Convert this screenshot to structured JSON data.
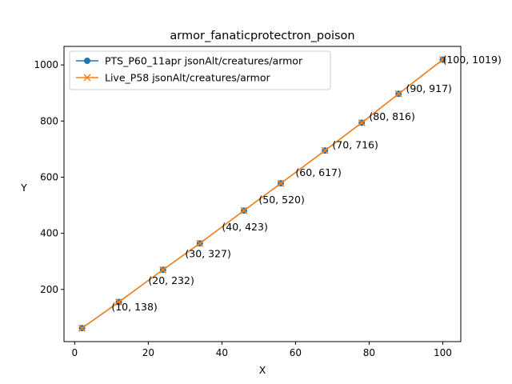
{
  "chart_data": {
    "type": "line",
    "title": "armor_fanaticprotectron_poison",
    "xlabel": "X",
    "ylabel": "Y",
    "xlim": [
      -2.9,
      104.9
    ],
    "ylim": [
      14,
      1066
    ],
    "xticks": [
      0,
      20,
      40,
      60,
      80,
      100
    ],
    "yticks": [
      200,
      400,
      600,
      800,
      1000
    ],
    "grid": false,
    "legend_position": "upper-left",
    "series": [
      {
        "name": "PTS_P60_11apr jsonAlt/creatures/armor",
        "color": "#1f77b4",
        "marker": "circle",
        "x": [
          2,
          12,
          24,
          34,
          46,
          56,
          68,
          78,
          88,
          100
        ],
        "y": [
          62,
          155,
          270,
          364,
          481,
          578,
          695,
          794,
          897,
          1019
        ]
      },
      {
        "name": "Live_P58 jsonAlt/creatures/armor",
        "color": "#ff7f0e",
        "marker": "x",
        "x": [
          2,
          12,
          24,
          34,
          46,
          56,
          68,
          78,
          88,
          100
        ],
        "y": [
          62,
          155,
          270,
          364,
          481,
          578,
          695,
          794,
          897,
          1019
        ]
      }
    ],
    "annotations": [
      {
        "text": "(10, 138)",
        "x": 10,
        "y": 138
      },
      {
        "text": "(20, 232)",
        "x": 20,
        "y": 232
      },
      {
        "text": "(30, 327)",
        "x": 30,
        "y": 327
      },
      {
        "text": "(40, 423)",
        "x": 40,
        "y": 423
      },
      {
        "text": "(50, 520)",
        "x": 50,
        "y": 520
      },
      {
        "text": "(60, 617)",
        "x": 60,
        "y": 617
      },
      {
        "text": "(70, 716)",
        "x": 70,
        "y": 716
      },
      {
        "text": "(80, 816)",
        "x": 80,
        "y": 816
      },
      {
        "text": "(90, 917)",
        "x": 90,
        "y": 917
      },
      {
        "text": "(100, 1019)",
        "x": 100,
        "y": 1019
      }
    ]
  }
}
